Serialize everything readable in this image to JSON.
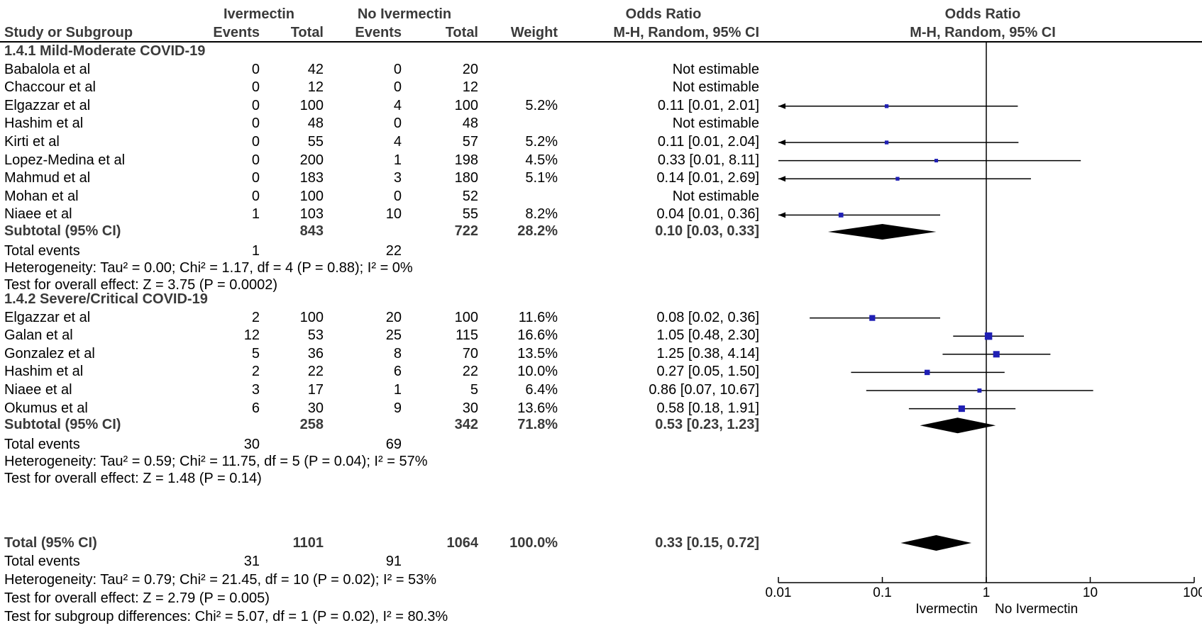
{
  "headers": {
    "group1": "Ivermectin",
    "group2": "No Ivermectin",
    "or_top": "Odds Ratio",
    "or_plot_top": "Odds Ratio",
    "study": "Study or Subgroup",
    "events1": "Events",
    "total1": "Total",
    "events2": "Events",
    "total2": "Total",
    "weight": "Weight",
    "method": "M-H, Random, 95% CI",
    "method_plot": "M-H, Random, 95% CI"
  },
  "subgroups": [
    {
      "title": "1.4.1 Mild-Moderate COVID-19",
      "studies": [
        {
          "name": "Babalola et al",
          "e1": "0",
          "t1": "42",
          "e2": "0",
          "t2": "20",
          "weight": "",
          "ci": "Not estimable"
        },
        {
          "name": "Chaccour et al",
          "e1": "0",
          "t1": "12",
          "e2": "0",
          "t2": "12",
          "weight": "",
          "ci": "Not estimable"
        },
        {
          "name": "Elgazzar et al",
          "e1": "0",
          "t1": "100",
          "e2": "4",
          "t2": "100",
          "weight": "5.2%",
          "ci": "0.11 [0.01, 2.01]"
        },
        {
          "name": "Hashim et al",
          "e1": "0",
          "t1": "48",
          "e2": "0",
          "t2": "48",
          "weight": "",
          "ci": "Not estimable"
        },
        {
          "name": "Kirti et al",
          "e1": "0",
          "t1": "55",
          "e2": "4",
          "t2": "57",
          "weight": "5.2%",
          "ci": "0.11 [0.01, 2.04]"
        },
        {
          "name": "Lopez-Medina et al",
          "e1": "0",
          "t1": "200",
          "e2": "1",
          "t2": "198",
          "weight": "4.5%",
          "ci": "0.33 [0.01, 8.11]"
        },
        {
          "name": "Mahmud et al",
          "e1": "0",
          "t1": "183",
          "e2": "3",
          "t2": "180",
          "weight": "5.1%",
          "ci": "0.14 [0.01, 2.69]"
        },
        {
          "name": "Mohan et al",
          "e1": "0",
          "t1": "100",
          "e2": "0",
          "t2": "52",
          "weight": "",
          "ci": "Not estimable"
        },
        {
          "name": "Niaee et al",
          "e1": "1",
          "t1": "103",
          "e2": "10",
          "t2": "55",
          "weight": "8.2%",
          "ci": "0.04 [0.01, 0.36]"
        }
      ],
      "subtotal": {
        "label": "Subtotal (95% CI)",
        "t1": "843",
        "t2": "722",
        "weight": "28.2%",
        "ci": "0.10 [0.03, 0.33]"
      },
      "total_events": {
        "label": "Total events",
        "e1": "1",
        "e2": "22"
      },
      "heterogeneity": "Heterogeneity: Tau² = 0.00; Chi² = 1.17, df = 4 (P = 0.88); I² = 0%",
      "overall": "Test for overall effect: Z = 3.75 (P = 0.0002)"
    },
    {
      "title": "1.4.2 Severe/Critical COVID-19",
      "studies": [
        {
          "name": "Elgazzar et al",
          "e1": "2",
          "t1": "100",
          "e2": "20",
          "t2": "100",
          "weight": "11.6%",
          "ci": "0.08 [0.02, 0.36]"
        },
        {
          "name": "Galan et al",
          "e1": "12",
          "t1": "53",
          "e2": "25",
          "t2": "115",
          "weight": "16.6%",
          "ci": "1.05 [0.48, 2.30]"
        },
        {
          "name": "Gonzalez et al",
          "e1": "5",
          "t1": "36",
          "e2": "8",
          "t2": "70",
          "weight": "13.5%",
          "ci": "1.25 [0.38, 4.14]"
        },
        {
          "name": "Hashim et al",
          "e1": "2",
          "t1": "22",
          "e2": "6",
          "t2": "22",
          "weight": "10.0%",
          "ci": "0.27 [0.05, 1.50]"
        },
        {
          "name": "Niaee et al",
          "e1": "3",
          "t1": "17",
          "e2": "1",
          "t2": "5",
          "weight": "6.4%",
          "ci": "0.86 [0.07, 10.67]"
        },
        {
          "name": "Okumus et al",
          "e1": "6",
          "t1": "30",
          "e2": "9",
          "t2": "30",
          "weight": "13.6%",
          "ci": "0.58 [0.18, 1.91]"
        }
      ],
      "subtotal": {
        "label": "Subtotal (95% CI)",
        "t1": "258",
        "t2": "342",
        "weight": "71.8%",
        "ci": "0.53 [0.23, 1.23]"
      },
      "total_events": {
        "label": "Total events",
        "e1": "30",
        "e2": "69"
      },
      "heterogeneity": "Heterogeneity: Tau² = 0.59; Chi² = 11.75, df = 5 (P = 0.04); I² = 57%",
      "overall": "Test for overall effect: Z = 1.48 (P = 0.14)"
    }
  ],
  "total": {
    "label": "Total (95% CI)",
    "t1": "1101",
    "t2": "1064",
    "weight": "100.0%",
    "ci": "0.33 [0.15, 0.72]",
    "events_label": "Total events",
    "e1": "31",
    "e2": "91",
    "heterogeneity": "Heterogeneity: Tau² = 0.79; Chi² = 21.45, df = 10 (P = 0.02); I² = 53%",
    "overall": "Test for overall effect: Z = 2.79 (P = 0.005)",
    "subgroup_diff": "Test for subgroup differences: Chi² = 5.07, df = 1 (P = 0.02), I² = 80.3%"
  },
  "chart_data": {
    "type": "forest",
    "scale": "log",
    "xlim": [
      0.01,
      100
    ],
    "x_ticks": [
      "0.01",
      "0.1",
      "1",
      "10",
      "100"
    ],
    "favours_left": "Ivermectin",
    "favours_right": "No Ivermectin",
    "colors": {
      "point": "#1f1fb4",
      "diamond": "#000000",
      "line": "#000000"
    },
    "studies": [
      {
        "subgroup": 0,
        "row": 2,
        "or": 0.11,
        "lo": 0.01,
        "hi": 2.01,
        "weight": 5.2
      },
      {
        "subgroup": 0,
        "row": 4,
        "or": 0.11,
        "lo": 0.01,
        "hi": 2.04,
        "weight": 5.2
      },
      {
        "subgroup": 0,
        "row": 5,
        "or": 0.33,
        "lo": 0.01,
        "hi": 8.11,
        "weight": 4.5
      },
      {
        "subgroup": 0,
        "row": 6,
        "or": 0.14,
        "lo": 0.01,
        "hi": 2.69,
        "weight": 5.1
      },
      {
        "subgroup": 0,
        "row": 8,
        "or": 0.04,
        "lo": 0.01,
        "hi": 0.36,
        "weight": 8.2
      },
      {
        "subgroup": 1,
        "row": 0,
        "or": 0.08,
        "lo": 0.02,
        "hi": 0.36,
        "weight": 11.6
      },
      {
        "subgroup": 1,
        "row": 1,
        "or": 1.05,
        "lo": 0.48,
        "hi": 2.3,
        "weight": 16.6
      },
      {
        "subgroup": 1,
        "row": 2,
        "or": 1.25,
        "lo": 0.38,
        "hi": 4.14,
        "weight": 13.5
      },
      {
        "subgroup": 1,
        "row": 3,
        "or": 0.27,
        "lo": 0.05,
        "hi": 1.5,
        "weight": 10.0
      },
      {
        "subgroup": 1,
        "row": 4,
        "or": 0.86,
        "lo": 0.07,
        "hi": 10.67,
        "weight": 6.4
      },
      {
        "subgroup": 1,
        "row": 5,
        "or": 0.58,
        "lo": 0.18,
        "hi": 1.91,
        "weight": 13.6
      }
    ],
    "diamonds": [
      {
        "kind": "subtotal",
        "subgroup": 0,
        "or": 0.1,
        "lo": 0.03,
        "hi": 0.33
      },
      {
        "kind": "subtotal",
        "subgroup": 1,
        "or": 0.53,
        "lo": 0.23,
        "hi": 1.23
      },
      {
        "kind": "total",
        "or": 0.33,
        "lo": 0.15,
        "hi": 0.72
      }
    ]
  }
}
